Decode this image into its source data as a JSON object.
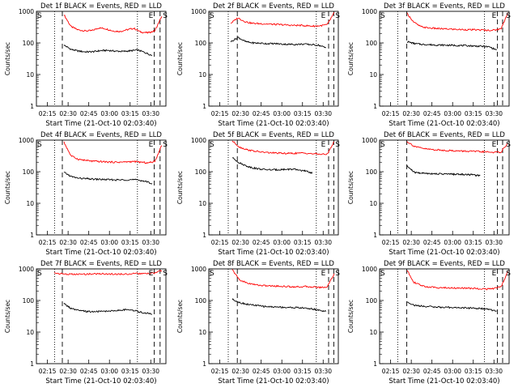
{
  "chart_data": [
    {
      "type": "line",
      "title": "Det 1f BLACK = Events, RED = LLD",
      "xlabel": "Start Time (21-Oct-10 02:03:40)",
      "ylabel": "Counts/sec",
      "x_ticks": [
        "02:15",
        "02:30",
        "02:45",
        "03:00",
        "03:15",
        "03:30"
      ],
      "y_ticks": [
        "1",
        "10",
        "100",
        "1000"
      ],
      "ylim": [
        1,
        1000
      ],
      "scale_y": "log",
      "markers": [
        "S",
        "E",
        "S"
      ],
      "series": [
        {
          "name": "RED = LLD",
          "color": "#ff0000",
          "start": "02:27",
          "end": "03:38",
          "values": [
            780,
            330,
            260,
            240,
            245,
            300,
            280,
            240,
            230,
            260,
            290,
            220,
            210,
            240,
            700
          ]
        },
        {
          "name": "BLACK = Events",
          "color": "#000000",
          "start": "02:27",
          "end": "03:31",
          "values": [
            85,
            62,
            55,
            52,
            53,
            57,
            58,
            55,
            54,
            56,
            60,
            50,
            40
          ]
        }
      ]
    },
    {
      "type": "line",
      "title": "Det 2f BLACK = Events, RED = LLD",
      "xlabel": "Start Time (21-Oct-10 02:03:40)",
      "ylabel": "Counts/sec",
      "x_ticks": [
        "02:15",
        "02:30",
        "02:45",
        "03:00",
        "03:15",
        "03:30"
      ],
      "y_ticks": [
        "1",
        "10",
        "100",
        "1000"
      ],
      "ylim": [
        1,
        1000
      ],
      "scale_y": "log",
      "markers": [
        "S",
        "E",
        "S"
      ],
      "series": [
        {
          "name": "RED = LLD",
          "color": "#ff0000",
          "start": "02:23",
          "end": "03:38",
          "values": [
            420,
            620,
            480,
            420,
            410,
            400,
            390,
            380,
            370,
            360,
            360,
            350,
            340,
            350,
            380,
            900
          ]
        },
        {
          "name": "BLACK = Events",
          "color": "#000000",
          "start": "02:23",
          "end": "03:32",
          "values": [
            110,
            150,
            110,
            100,
            98,
            95,
            95,
            92,
            90,
            90,
            92,
            88,
            85,
            70
          ]
        }
      ]
    },
    {
      "type": "line",
      "title": "Det 3f BLACK = Events, RED = LLD",
      "xlabel": "Start Time (21-Oct-10 02:03:40)",
      "ylabel": "Counts/sec",
      "x_ticks": [
        "02:15",
        "02:30",
        "02:45",
        "03:00",
        "03:15",
        "03:30"
      ],
      "y_ticks": [
        "1",
        "10",
        "100",
        "1000"
      ],
      "ylim": [
        1,
        1000
      ],
      "scale_y": "log",
      "markers": [
        "S",
        "E",
        "S"
      ],
      "series": [
        {
          "name": "RED = LLD",
          "color": "#ff0000",
          "start": "02:27",
          "end": "03:40",
          "values": [
            850,
            450,
            330,
            300,
            290,
            280,
            275,
            270,
            265,
            262,
            260,
            258,
            250,
            255,
            280,
            900
          ]
        },
        {
          "name": "BLACK = Events",
          "color": "#000000",
          "start": "02:27",
          "end": "03:32",
          "values": [
            110,
            95,
            90,
            88,
            86,
            85,
            84,
            83,
            82,
            80,
            78,
            75,
            60
          ]
        }
      ]
    },
    {
      "type": "line",
      "title": "Det 4f BLACK = Events, RED = LLD",
      "xlabel": "Start Time (21-Oct-10 02:03:40)",
      "ylabel": "Counts/sec",
      "x_ticks": [
        "02:15",
        "02:30",
        "02:45",
        "03:00",
        "03:15",
        "03:30"
      ],
      "y_ticks": [
        "1",
        "10",
        "100",
        "1000"
      ],
      "ylim": [
        1,
        1000
      ],
      "scale_y": "log",
      "markers": [
        "S",
        "E",
        "S"
      ],
      "series": [
        {
          "name": "RED = LLD",
          "color": "#ff0000",
          "start": "02:27",
          "end": "03:38",
          "values": [
            850,
            320,
            250,
            230,
            215,
            210,
            205,
            200,
            200,
            205,
            210,
            200,
            190,
            210,
            700
          ]
        },
        {
          "name": "BLACK = Events",
          "color": "#000000",
          "start": "02:27",
          "end": "03:31",
          "values": [
            95,
            70,
            62,
            60,
            58,
            57,
            56,
            55,
            55,
            56,
            55,
            50,
            42
          ]
        }
      ]
    },
    {
      "type": "line",
      "title": "Det 5f BLACK = Events, RED = LLD",
      "xlabel": "Start Time (21-Oct-10 02:03:40)",
      "ylabel": "Counts/sec",
      "x_ticks": [
        "02:15",
        "02:30",
        "02:45",
        "03:00",
        "03:15",
        "03:30"
      ],
      "y_ticks": [
        "1",
        "10",
        "100",
        "1000"
      ],
      "ylim": [
        1,
        1000
      ],
      "scale_y": "log",
      "markers": [
        "S",
        "E",
        "S"
      ],
      "series": [
        {
          "name": "RED = LLD",
          "color": "#ff0000",
          "start": "02:24",
          "end": "03:38",
          "values": [
            950,
            600,
            500,
            450,
            420,
            400,
            390,
            380,
            380,
            385,
            390,
            370,
            360,
            350,
            900
          ]
        },
        {
          "name": "BLACK = Events",
          "color": "#000000",
          "start": "02:24",
          "end": "03:22",
          "values": [
            280,
            190,
            150,
            130,
            120,
            115,
            115,
            118,
            120,
            115,
            105,
            92
          ]
        }
      ]
    },
    {
      "type": "line",
      "title": "Det 6f BLACK = Events, RED = LLD",
      "xlabel": "Start Time (21-Oct-10 02:03:40)",
      "ylabel": "Counts/sec",
      "x_ticks": [
        "02:15",
        "02:30",
        "02:45",
        "03:00",
        "03:15",
        "03:30"
      ],
      "y_ticks": [
        "1",
        "10",
        "100",
        "1000"
      ],
      "ylim": [
        1,
        1000
      ],
      "scale_y": "log",
      "markers": [
        "S",
        "E",
        "S"
      ],
      "series": [
        {
          "name": "RED = LLD",
          "color": "#ff0000",
          "start": "02:27",
          "end": "03:40",
          "values": [
            900,
            650,
            560,
            520,
            500,
            480,
            470,
            460,
            450,
            445,
            440,
            430,
            420,
            410,
            420,
            800
          ]
        },
        {
          "name": "BLACK = Events",
          "color": "#000000",
          "start": "02:27",
          "end": "03:20",
          "values": [
            150,
            95,
            90,
            88,
            86,
            85,
            84,
            83,
            82,
            80,
            75
          ]
        }
      ]
    },
    {
      "type": "line",
      "title": "Det 7f BLACK = Events, RED = LLD",
      "xlabel": "Start Time (21-Oct-10 02:03:40)",
      "ylabel": "Counts/sec",
      "x_ticks": [
        "02:15",
        "02:30",
        "02:45",
        "03:00",
        "03:15",
        "03:30"
      ],
      "y_ticks": [
        "1",
        "10",
        "100",
        "1000"
      ],
      "ylim": [
        1,
        1000
      ],
      "scale_y": "log",
      "markers": [
        "S",
        "E",
        "S"
      ],
      "series": [
        {
          "name": "RED = LLD",
          "color": "#ff0000",
          "start": "02:20",
          "end": "03:38",
          "values": [
            750,
            700,
            680,
            670,
            680,
            690,
            700,
            700,
            690,
            680,
            690,
            700,
            710,
            700,
            740,
            900
          ]
        },
        {
          "name": "BLACK = Events",
          "color": "#000000",
          "start": "02:27",
          "end": "03:31",
          "values": [
            80,
            55,
            48,
            45,
            44,
            45,
            46,
            48,
            50,
            52,
            45,
            40,
            38
          ]
        }
      ]
    },
    {
      "type": "line",
      "title": "Det 8f BLACK = Events, RED = LLD",
      "xlabel": "Start Time (21-Oct-10 02:03:40)",
      "ylabel": "Counts/sec",
      "x_ticks": [
        "02:15",
        "02:30",
        "02:45",
        "03:00",
        "03:15",
        "03:30"
      ],
      "y_ticks": [
        "1",
        "10",
        "100",
        "1000"
      ],
      "ylim": [
        1,
        1000
      ],
      "scale_y": "log",
      "markers": [
        "S",
        "E",
        "S"
      ],
      "series": [
        {
          "name": "RED = LLD",
          "color": "#ff0000",
          "start": "02:24",
          "end": "03:38",
          "values": [
            950,
            450,
            360,
            320,
            300,
            290,
            285,
            280,
            275,
            270,
            275,
            270,
            260,
            265,
            700
          ]
        },
        {
          "name": "BLACK = Events",
          "color": "#000000",
          "start": "02:24",
          "end": "03:32",
          "values": [
            110,
            85,
            75,
            70,
            65,
            63,
            62,
            60,
            60,
            58,
            55,
            50,
            45
          ]
        }
      ]
    },
    {
      "type": "line",
      "title": "Det 9f BLACK = Events, RED = LLD",
      "xlabel": "Start Time (21-Oct-10 02:03:40)",
      "ylabel": "Counts/sec",
      "x_ticks": [
        "02:15",
        "02:30",
        "02:45",
        "03:00",
        "03:15",
        "03:30"
      ],
      "y_ticks": [
        "1",
        "10",
        "100",
        "1000"
      ],
      "ylim": [
        1,
        1000
      ],
      "scale_y": "log",
      "markers": [
        "S",
        "E",
        "S"
      ],
      "series": [
        {
          "name": "RED = LLD",
          "color": "#ff0000",
          "start": "02:27",
          "end": "03:40",
          "values": [
            900,
            380,
            300,
            270,
            260,
            255,
            250,
            250,
            245,
            245,
            240,
            235,
            230,
            240,
            270,
            800
          ]
        },
        {
          "name": "BLACK = Events",
          "color": "#000000",
          "start": "02:27",
          "end": "03:32",
          "values": [
            90,
            70,
            66,
            64,
            62,
            60,
            60,
            59,
            58,
            57,
            55,
            52,
            45
          ]
        }
      ]
    }
  ]
}
